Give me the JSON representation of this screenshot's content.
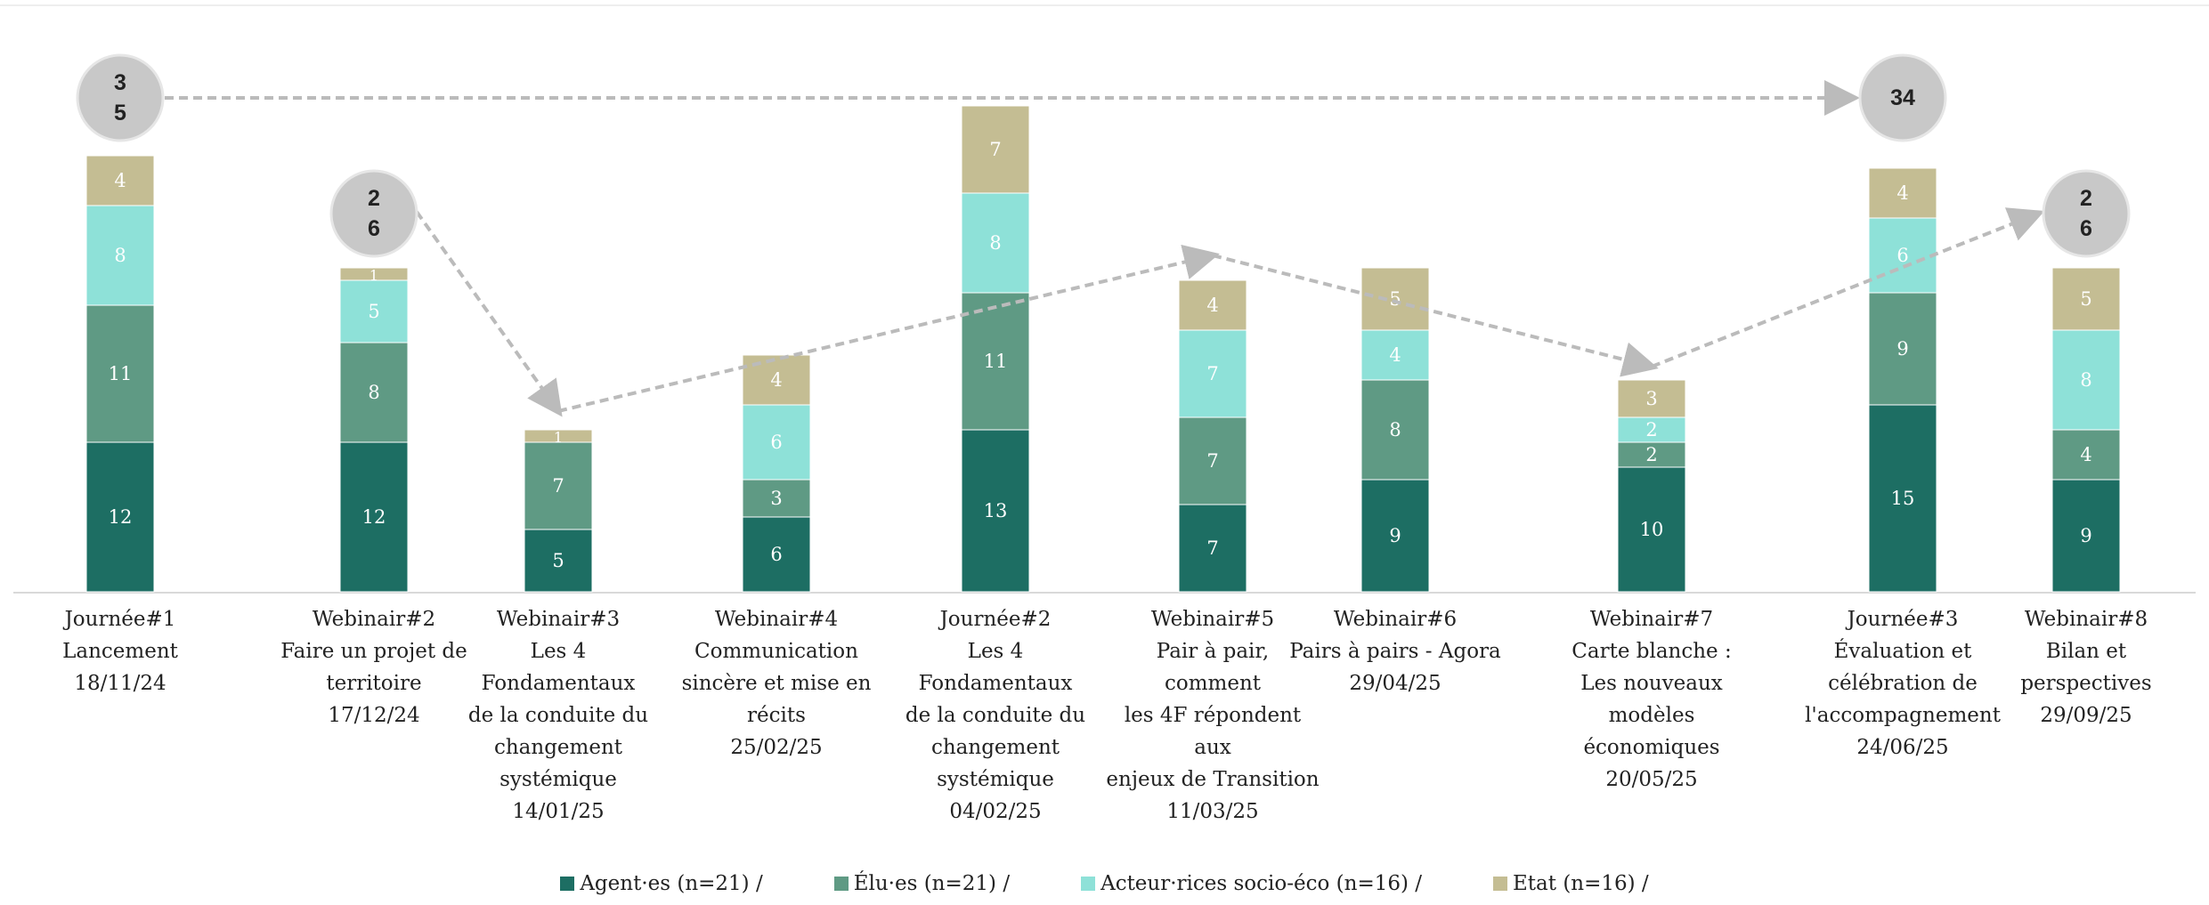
{
  "chart_data": {
    "type": "bar",
    "stacked": true,
    "categories": [
      "Journée#1\nLancement\n18/11/24",
      "Webinair#2\nFaire un projet de\nterritoire\n17/12/24",
      "Webinair#3\nLes 4 Fondamentaux\nde la conduite du\nchangement\nsystémique\n14/01/25",
      "Webinair#4\nCommunication\nsincère et mise en\nrécits\n25/02/25",
      "Journée#2\nLes 4 Fondamentaux\nde la conduite du\nchangement\nsystémique\n04/02/25",
      "Webinair#5\nPair à pair, comment\nles 4F répondent aux\nenjeux de Transition\n11/03/25",
      "Webinair#6\nPairs à pairs - Agora\n29/04/25",
      "Webinair#7\nCarte blanche :\nLes nouveaux modèles\néconomiques\n20/05/25",
      "Journée#3\nÉvaluation et\ncélébration de\nl'accompagnement\n24/06/25",
      "Webinair#8\nBilan et perspectives\n29/09/25"
    ],
    "series": [
      {
        "name": "Agent·es (n=21) /",
        "color": "#1d6e63",
        "values": [
          12,
          12,
          5,
          6,
          13,
          7,
          9,
          10,
          15,
          9
        ]
      },
      {
        "name": "Élu·es (n=21) /",
        "color": "#5f9a84",
        "values": [
          11,
          8,
          7,
          3,
          11,
          7,
          8,
          2,
          9,
          4
        ]
      },
      {
        "name": "Acteur·rices socio-éco (n=16) /",
        "color": "#8ee1d8",
        "values": [
          8,
          5,
          0,
          6,
          8,
          7,
          4,
          2,
          6,
          8
        ]
      },
      {
        "name": "Etat (n=16) /",
        "color": "#c4bd93",
        "values": [
          4,
          1,
          1,
          4,
          7,
          4,
          5,
          3,
          4,
          5
        ]
      }
    ],
    "total_bubbles": [
      {
        "index": 0,
        "label": "3\n5"
      },
      {
        "index": 1,
        "label": "2\n6"
      },
      {
        "index": 8,
        "label": "34"
      },
      {
        "index": 9,
        "label": "2\n6"
      }
    ],
    "trend_line_points": [
      {
        "from_index": 0,
        "to_index": 8,
        "kind": "bubble-to-bubble"
      },
      {
        "path_indices": [
          1,
          2,
          5,
          7,
          9
        ]
      }
    ],
    "ylim": [
      0,
      40
    ],
    "grid": false,
    "legend_position": "bottom"
  }
}
